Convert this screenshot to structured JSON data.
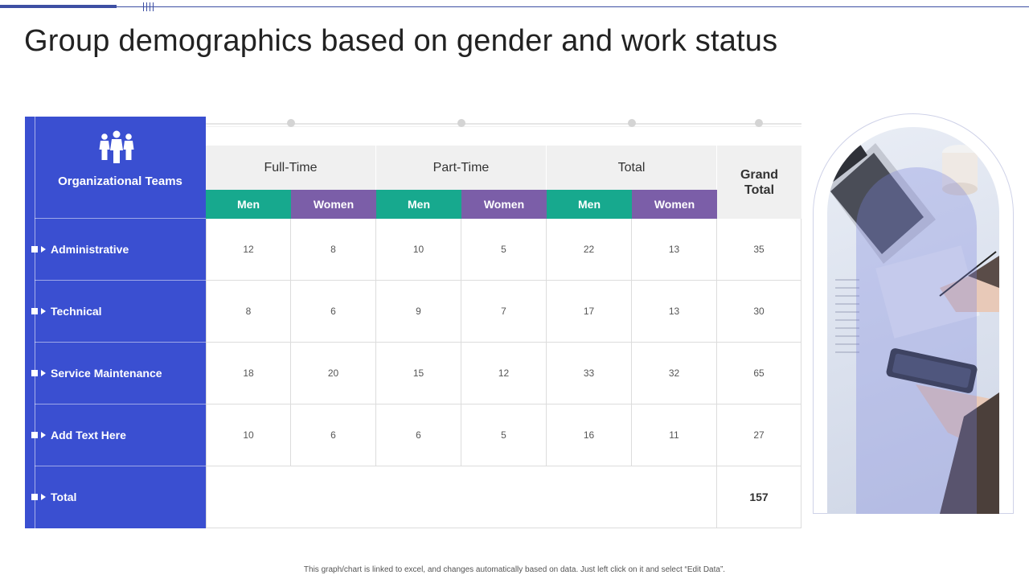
{
  "title": "Group demographics based on gender and work status",
  "sidebar": {
    "header": "Organizational Teams",
    "rows": [
      "Administrative",
      "Technical",
      "Service Maintenance",
      "Add Text Here",
      "Total"
    ]
  },
  "groups": [
    "Full-Time",
    "Part-Time",
    "Total"
  ],
  "grand_total_header": "Grand Total",
  "subheaders": [
    "Men",
    "Women",
    "Men",
    "Women",
    "Men",
    "Women"
  ],
  "table": {
    "rows": [
      [
        "12",
        "8",
        "10",
        "5",
        "22",
        "13",
        "35"
      ],
      [
        "8",
        "6",
        "9",
        "7",
        "17",
        "13",
        "30"
      ],
      [
        "18",
        "20",
        "15",
        "12",
        "33",
        "32",
        "65"
      ],
      [
        "10",
        "6",
        "6",
        "5",
        "16",
        "11",
        "27"
      ]
    ],
    "grand_total": "157"
  },
  "footer": "This graph/chart is linked to excel, and changes automatically based on data. Just left click on it and select “Edit Data”.",
  "colors": {
    "panel_blue": "#3a4fd1",
    "men_teal": "#17a98e",
    "women_purple": "#7b5ea8",
    "accent_line": "#3d4fa3"
  }
}
